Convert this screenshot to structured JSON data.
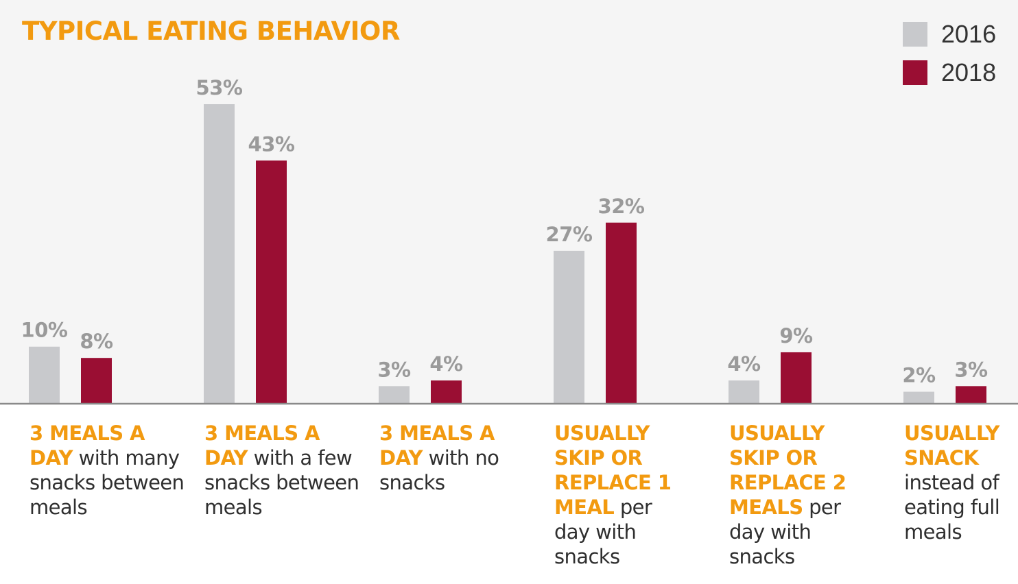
{
  "colors": {
    "title": "#f29a10",
    "series_2016": "#c8c9cc",
    "series_2018": "#9a0e33",
    "value_label": "#9a9a9a",
    "axis": "#8a8a8a",
    "plot_background": "#f5f5f5"
  },
  "chart_data": {
    "type": "bar",
    "title": "TYPICAL EATING BEHAVIOR",
    "xlabel": "",
    "ylabel": "",
    "ylim": [
      0,
      56
    ],
    "grid": false,
    "legend_position": "top-right",
    "categories": [
      {
        "highlight": "3 MEALS A DAY",
        "rest": " with many snacks between meals"
      },
      {
        "highlight": "3 MEALS A DAY",
        "rest": " with a few snacks between meals"
      },
      {
        "highlight": "3 MEALS A DAY",
        "rest": " with no snacks"
      },
      {
        "highlight": "USUALLY SKIP OR REPLACE 1 MEAL",
        "rest": " per day with snacks"
      },
      {
        "highlight": "USUALLY SKIP OR REPLACE 2 MEALS",
        "rest": " per day with snacks"
      },
      {
        "highlight": "USUALLY SNACK",
        "rest": " instead of eating full meals"
      }
    ],
    "series": [
      {
        "name": "2016",
        "values": [
          10,
          53,
          3,
          27,
          4,
          2
        ],
        "labels": [
          "10%",
          "53%",
          "3%",
          "27%",
          "4%",
          "2%"
        ]
      },
      {
        "name": "2018",
        "values": [
          8,
          43,
          4,
          32,
          9,
          3
        ],
        "labels": [
          "8%",
          "43%",
          "4%",
          "32%",
          "9%",
          "3%"
        ]
      }
    ]
  }
}
